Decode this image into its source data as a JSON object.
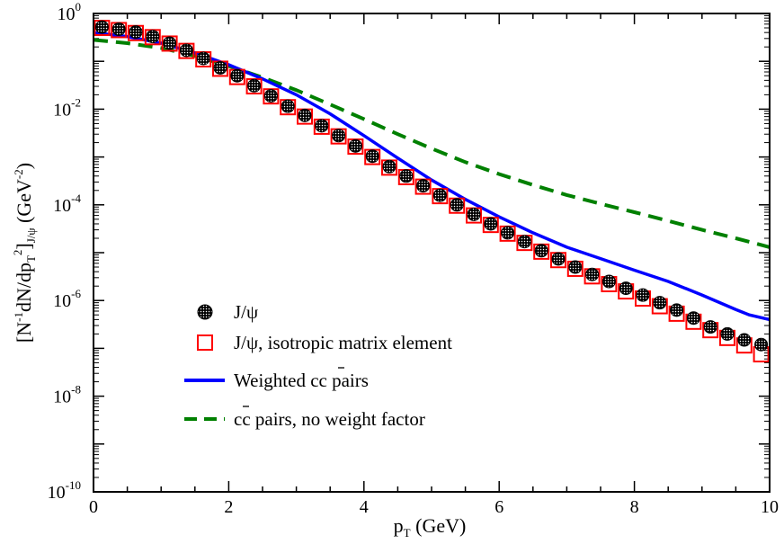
{
  "chart_data": {
    "type": "line",
    "title": "",
    "xlabel": {
      "main": "p",
      "sub": "T",
      "unit": " (GeV)"
    },
    "ylabel": {
      "p1": "[N",
      "p1sup": "-1",
      "p2": "dN/dp",
      "p2sub": "T",
      "p2sup": "2",
      "p3": "]",
      "p3sub": "J/ψ",
      "p4": " (GeV",
      "p4sup": "-2",
      "p5": ")"
    },
    "xlim": [
      0,
      10
    ],
    "ylim_log10": [
      -10,
      0
    ],
    "yscale": "log",
    "x_ticks": [
      0,
      2,
      4,
      6,
      8,
      10
    ],
    "y_ticks": [
      {
        "base": "10",
        "exp": "0",
        "value": 1
      },
      {
        "base": "10",
        "exp": "-2",
        "value": 0.01
      },
      {
        "base": "10",
        "exp": "-4",
        "value": 0.0001
      },
      {
        "base": "10",
        "exp": "-6",
        "value": 1e-06
      },
      {
        "base": "10",
        "exp": "-8",
        "value": 1e-08
      },
      {
        "base": "10",
        "exp": "-10",
        "value": 1e-10
      }
    ],
    "legend_position": "lower-left",
    "series": [
      {
        "name": "J/ψ",
        "label": "J/ψ",
        "style": "dotted-black-circles",
        "color": "#000000",
        "x": [
          0.125,
          0.375,
          0.625,
          0.875,
          1.125,
          1.375,
          1.625,
          1.875,
          2.125,
          2.375,
          2.625,
          2.875,
          3.125,
          3.375,
          3.625,
          3.875,
          4.125,
          4.375,
          4.625,
          4.875,
          5.125,
          5.375,
          5.625,
          5.875,
          6.125,
          6.375,
          6.625,
          6.875,
          7.125,
          7.375,
          7.625,
          7.875,
          8.125,
          8.375,
          8.625,
          8.875,
          9.125,
          9.375,
          9.625,
          9.875
        ],
        "y": [
          0.52,
          0.47,
          0.41,
          0.33,
          0.24,
          0.17,
          0.115,
          0.073,
          0.05,
          0.031,
          0.019,
          0.0115,
          0.0074,
          0.0045,
          0.0028,
          0.0017,
          0.00104,
          0.00063,
          0.0004,
          0.00025,
          0.000158,
          0.0001,
          6.3e-05,
          4e-05,
          2.6e-05,
          1.7e-05,
          1.1e-05,
          7.4e-06,
          5e-06,
          3.5e-06,
          2.5e-06,
          1.8e-06,
          1.3e-06,
          9e-07,
          6.3e-07,
          4.3e-07,
          2.8e-07,
          2e-07,
          1.5e-07,
          1.2e-07
        ]
      },
      {
        "name": "J/ψ isotropic",
        "label": "J/ψ, isotropic matrix element",
        "style": "red-open-squares",
        "color": "#ff0000",
        "x": [
          0.125,
          0.375,
          0.625,
          0.875,
          1.125,
          1.375,
          1.625,
          1.875,
          2.125,
          2.375,
          2.625,
          2.875,
          3.125,
          3.375,
          3.625,
          3.875,
          4.125,
          4.375,
          4.625,
          4.875,
          5.125,
          5.375,
          5.625,
          5.875,
          6.125,
          6.375,
          6.625,
          6.875,
          7.125,
          7.375,
          7.625,
          7.875,
          8.125,
          8.375,
          8.625,
          8.875,
          9.125,
          9.375,
          9.625,
          9.875
        ],
        "y": [
          0.5,
          0.45,
          0.39,
          0.32,
          0.235,
          0.165,
          0.11,
          0.07,
          0.047,
          0.03,
          0.0185,
          0.011,
          0.007,
          0.0043,
          0.0027,
          0.00165,
          0.001,
          0.0006,
          0.00038,
          0.00024,
          0.000152,
          9.6e-05,
          6e-05,
          3.8e-05,
          2.5e-05,
          1.6e-05,
          1.05e-05,
          7e-06,
          4.6e-06,
          3.2e-06,
          2.2e-06,
          1.55e-06,
          1.1e-06,
          7.6e-07,
          5.3e-07,
          3.6e-07,
          2.4e-07,
          1.65e-07,
          1.15e-07,
          7.5e-08
        ]
      },
      {
        "name": "Weighted cc pairs",
        "label": "Weighted cc pairs",
        "style": "solid-line",
        "color": "#0000ff",
        "x": [
          0,
          0.5,
          1,
          1.5,
          2,
          2.5,
          3,
          3.5,
          4,
          4.5,
          5,
          5.5,
          6,
          6.5,
          7,
          7.5,
          8,
          8.5,
          9,
          9.5,
          9.7,
          10
        ],
        "y": [
          0.4,
          0.33,
          0.24,
          0.15,
          0.085,
          0.043,
          0.02,
          0.008,
          0.0028,
          0.00095,
          0.00033,
          0.00013,
          5.6e-05,
          2.6e-05,
          1.3e-05,
          7.5e-06,
          4.3e-06,
          2.5e-06,
          1.3e-06,
          6.5e-07,
          5e-07,
          4e-07
        ]
      },
      {
        "name": "cc pairs no weight",
        "label": "cc pairs, no weight factor",
        "style": "dashed-line",
        "color": "#008000",
        "x": [
          0,
          0.5,
          1,
          1.5,
          2,
          2.5,
          3,
          3.5,
          4,
          4.5,
          5,
          5.5,
          6,
          6.5,
          7,
          7.5,
          8,
          8.5,
          9,
          9.5,
          10
        ],
        "y": [
          0.28,
          0.24,
          0.19,
          0.13,
          0.08,
          0.046,
          0.025,
          0.0125,
          0.0062,
          0.003,
          0.0015,
          0.00078,
          0.00044,
          0.00026,
          0.00016,
          0.000105,
          7e-05,
          4.6e-05,
          3e-05,
          2e-05,
          1.3e-05
        ]
      }
    ]
  }
}
